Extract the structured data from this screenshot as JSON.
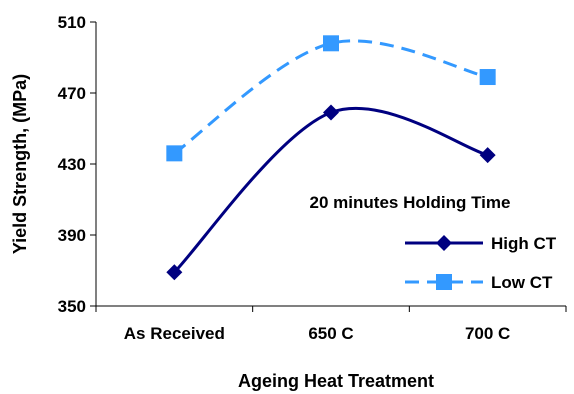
{
  "chart_data": {
    "type": "line",
    "categories": [
      "As Received",
      "650 C",
      "700 C"
    ],
    "series": [
      {
        "name": "High CT",
        "values": [
          369,
          459,
          435
        ],
        "color": "#000080",
        "marker": "diamond",
        "dash": "solid"
      },
      {
        "name": "Low CT",
        "values": [
          436,
          498,
          479
        ],
        "color": "#3399FF",
        "marker": "square",
        "dash": "dashed"
      }
    ],
    "xlabel": "Ageing Heat Treatment",
    "ylabel": "Yield Strength, (MPa)",
    "ylim": [
      350,
      510
    ],
    "yticks": [
      350,
      390,
      430,
      470,
      510
    ],
    "annotation": "20 minutes Holding Time",
    "legend_position": "inside-bottom-right",
    "grid": false
  }
}
